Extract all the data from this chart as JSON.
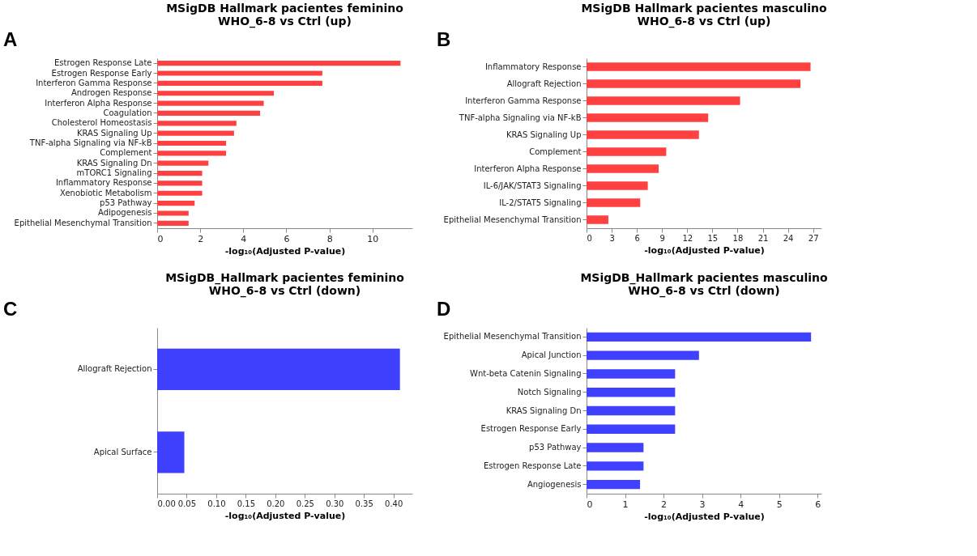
{
  "chart_data": [
    {
      "type": "bar",
      "orientation": "horizontal",
      "title": "MSigDB Hallmark pacientes feminino\nWHO_6-8 vs Ctrl (up)",
      "xlabel": "-log₁₀(Adjusted P-value)",
      "annotations": [
        "A"
      ],
      "color": "#ff4040",
      "grid": false,
      "categories": [
        "Estrogen Response Late",
        "Estrogen Response Early",
        "Interferon Gamma Response",
        "Androgen Response",
        "Interferon Alpha Response",
        "Coagulation",
        "Cholesterol Homeostasis",
        "KRAS Signaling Up",
        "TNF-alpha Signaling via NF-kB",
        "Complement",
        "KRAS Signaling Dn",
        "mTORC1 Signaling",
        "Inflammatory Response",
        "Xenobiotic Metabolism",
        "p53 Pathway",
        "Adipogenesis",
        "Epithelial Mesenchymal Transition"
      ],
      "values": [
        11.3,
        7.67,
        7.67,
        5.42,
        4.95,
        4.78,
        3.68,
        3.57,
        3.2,
        3.2,
        2.38,
        2.09,
        2.09,
        2.09,
        1.74,
        1.46,
        1.46
      ],
      "xlim": [
        0,
        11.85
      ],
      "xticks": [
        0,
        2,
        4,
        6,
        8,
        10
      ]
    },
    {
      "type": "bar",
      "orientation": "horizontal",
      "title": "MSigDB Hallmark pacientes masculino\nWHO_6-8 vs Ctrl (up)",
      "xlabel": "-log₁₀(Adjusted P-value)",
      "annotations": [
        "B"
      ],
      "color": "#ff4040",
      "grid": false,
      "categories": [
        "Inflammatory Response",
        "Allograft Rejection",
        "Interferon Gamma Response",
        "TNF-alpha Signaling via NF-kB",
        "KRAS Signaling Up",
        "Complement",
        "Interferon Alpha Response",
        "IL-6/JAK/STAT3 Signaling",
        "IL-2/STAT5 Signaling",
        "Epithelial Mesenchymal Transition"
      ],
      "values": [
        26.7,
        25.5,
        18.3,
        14.5,
        13.4,
        9.5,
        8.6,
        7.3,
        6.4,
        2.6
      ],
      "xlim": [
        0,
        28
      ],
      "xticks": [
        0,
        3,
        6,
        9,
        12,
        15,
        18,
        21,
        24,
        27
      ]
    },
    {
      "type": "bar",
      "orientation": "horizontal",
      "title": "MSigDB_Hallmark pacientes feminino\nWHO_6-8 vs Ctrl (down)",
      "xlabel": "-log₁₀(Adjusted P-value)",
      "annotations": [
        "C"
      ],
      "color": "#4040ff",
      "grid": false,
      "categories": [
        "Allograft Rejection",
        "Apical Surface"
      ],
      "values": [
        0.411,
        0.046
      ],
      "xlim": [
        0,
        0.432
      ],
      "xticks": [
        {
          "value": 0,
          "label": "0.00"
        },
        0.05,
        {
          "value": 0.1,
          "label": "0.10"
        },
        0.15,
        {
          "value": 0.2,
          "label": "0.20"
        },
        0.25,
        {
          "value": 0.3,
          "label": "0.30"
        },
        0.35,
        {
          "value": 0.4,
          "label": "0.40"
        }
      ]
    },
    {
      "type": "bar",
      "orientation": "horizontal",
      "title": "MSigDB_Hallmark pacientes masculino\nWHO_6-8 vs Ctrl (down)",
      "xlabel": "-log₁₀(Adjusted P-value)",
      "annotations": [
        "D"
      ],
      "color": "#4040ff",
      "grid": false,
      "categories": [
        "Epithelial Mesenchymal Transition",
        "Apical Junction",
        "Wnt-beta Catenin Signaling",
        "Notch Signaling",
        "KRAS Signaling Dn",
        "Estrogen Response Early",
        "p53 Pathway",
        "Estrogen Response Late",
        "Angiogenesis"
      ],
      "values": [
        5.83,
        2.92,
        2.3,
        2.3,
        2.3,
        2.3,
        1.48,
        1.48,
        1.39
      ],
      "xlim": [
        0,
        6.1
      ],
      "xticks": [
        0,
        1,
        2,
        3,
        4,
        5,
        6
      ]
    }
  ]
}
